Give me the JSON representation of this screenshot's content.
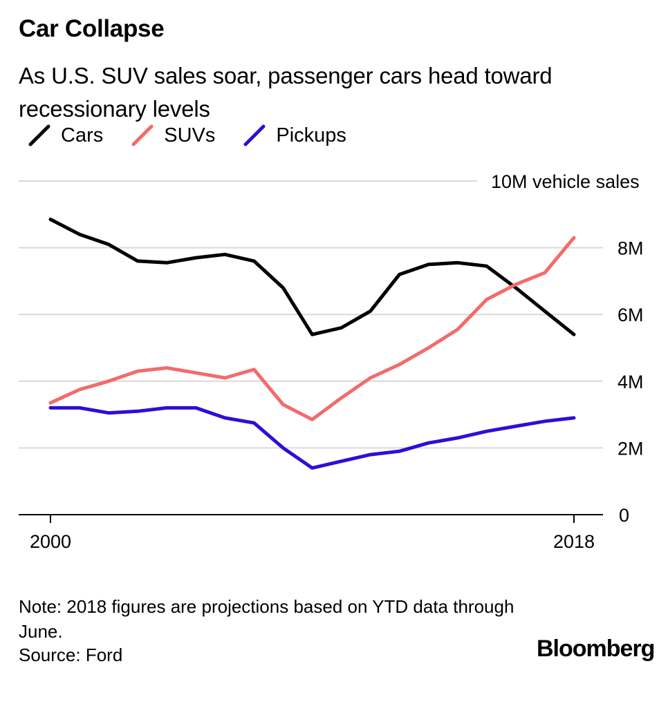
{
  "header": {
    "title": "Car Collapse",
    "subtitle": "As U.S. SUV sales soar, passenger cars head toward recessionary levels"
  },
  "footer": {
    "note": "Note: 2018 figures are projections based on YTD data through June.",
    "source": "Source: Ford",
    "brand": "Bloomberg"
  },
  "colors": {
    "cars": "#000000",
    "suvs": "#f26b6b",
    "pickups": "#2b0fd6",
    "grid": "#d9d9d9",
    "axis": "#000000"
  },
  "chart_data": {
    "type": "line",
    "title": "Car Collapse",
    "subtitle": "As U.S. SUV sales soar, passenger cars head toward recessionary levels",
    "xlabel": "",
    "ylabel": "vehicle sales",
    "x": [
      2000,
      2001,
      2002,
      2003,
      2004,
      2005,
      2006,
      2007,
      2008,
      2009,
      2010,
      2011,
      2012,
      2013,
      2014,
      2015,
      2016,
      2017,
      2018
    ],
    "x_tick_labels": [
      "2000",
      "2018"
    ],
    "x_ticks": [
      2000,
      2018
    ],
    "y_ticks": [
      {
        "value": 0,
        "label": "0"
      },
      {
        "value": 2,
        "label": "2M"
      },
      {
        "value": 4,
        "label": "4M"
      },
      {
        "value": 6,
        "label": "6M"
      },
      {
        "value": 8,
        "label": "8M"
      },
      {
        "value": 10,
        "label": "10M vehicle sales"
      }
    ],
    "ylim": [
      0,
      10
    ],
    "grid": true,
    "legend_position": "top-left",
    "series": [
      {
        "name": "Cars",
        "color": "#000000",
        "values": [
          8.85,
          8.4,
          8.1,
          7.6,
          7.55,
          7.7,
          7.8,
          7.6,
          6.8,
          5.4,
          5.6,
          6.1,
          7.2,
          7.5,
          7.55,
          7.45,
          6.8,
          6.1,
          5.4
        ]
      },
      {
        "name": "SUVs",
        "color": "#f26b6b",
        "values": [
          3.35,
          3.75,
          4.0,
          4.3,
          4.4,
          4.25,
          4.1,
          4.35,
          3.3,
          2.85,
          3.5,
          4.1,
          4.5,
          5.0,
          5.55,
          6.45,
          6.9,
          7.25,
          8.3
        ]
      },
      {
        "name": "Pickups",
        "color": "#2b0fd6",
        "values": [
          3.2,
          3.2,
          3.05,
          3.1,
          3.2,
          3.2,
          2.9,
          2.75,
          2.0,
          1.4,
          1.6,
          1.8,
          1.9,
          2.15,
          2.3,
          2.5,
          2.65,
          2.8,
          2.9
        ]
      }
    ]
  }
}
